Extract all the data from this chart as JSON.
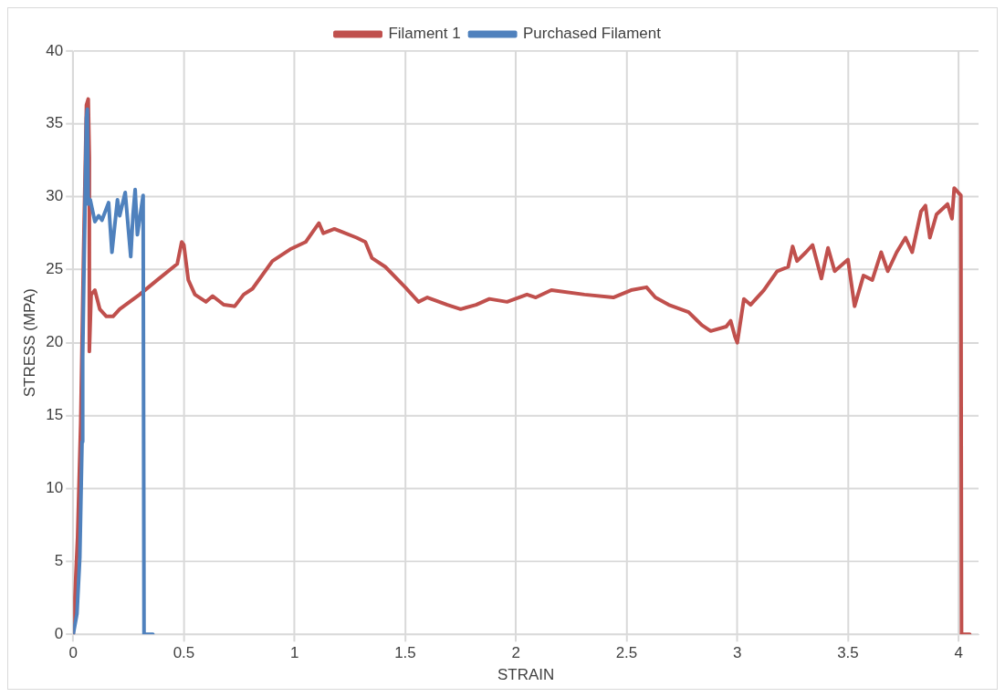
{
  "chart_data": {
    "type": "line",
    "xlabel": "STRAIN",
    "ylabel": "STRESS (MPA)",
    "xlim": [
      0,
      4.09
    ],
    "xticks": [
      0,
      0.5,
      1,
      1.5,
      2,
      2.5,
      3,
      3.5,
      4
    ],
    "ylim": [
      0,
      40
    ],
    "yticks": [
      0,
      5,
      10,
      15,
      20,
      25,
      30,
      35,
      40
    ],
    "grid": true,
    "legend": "top",
    "marker": "none",
    "line_style": "solid",
    "series": [
      {
        "name": "Filament 1",
        "color": "#c0504d",
        "x": [
          0,
          0.02,
          0.034,
          0.047,
          0.06,
          0.068,
          0.073,
          0.073,
          0.081,
          0.098,
          0.12,
          0.15,
          0.18,
          0.21,
          0.3,
          0.38,
          0.47,
          0.49,
          0.5,
          0.52,
          0.55,
          0.6,
          0.63,
          0.68,
          0.73,
          0.77,
          0.81,
          0.9,
          0.98,
          1.05,
          1.11,
          1.13,
          1.18,
          1.28,
          1.32,
          1.35,
          1.41,
          1.5,
          1.56,
          1.6,
          1.69,
          1.75,
          1.82,
          1.88,
          1.96,
          2.05,
          2.09,
          2.16,
          2.31,
          2.44,
          2.52,
          2.59,
          2.63,
          2.69,
          2.78,
          2.84,
          2.88,
          2.95,
          2.97,
          2.99,
          3,
          3.03,
          3.06,
          3.12,
          3.18,
          3.23,
          3.25,
          3.27,
          3.31,
          3.34,
          3.38,
          3.41,
          3.44,
          3.5,
          3.53,
          3.57,
          3.61,
          3.65,
          3.68,
          3.72,
          3.76,
          3.79,
          3.83,
          3.85,
          3.87,
          3.9,
          3.95,
          3.97,
          3.98,
          4.01,
          4.013,
          4.05
        ],
        "values": [
          0,
          6.7,
          14.5,
          26.2,
          36.3,
          36.7,
          32.7,
          19.4,
          23.3,
          23.6,
          22.3,
          21.8,
          21.8,
          22.3,
          23.3,
          24.3,
          25.4,
          26.9,
          26.7,
          24.3,
          23.3,
          22.8,
          23.2,
          22.6,
          22.5,
          23.3,
          23.7,
          25.6,
          26.4,
          26.9,
          28.2,
          27.5,
          27.8,
          27.2,
          26.9,
          25.8,
          25.2,
          23.8,
          22.8,
          23.1,
          22.6,
          22.3,
          22.6,
          23,
          22.8,
          23.3,
          23.1,
          23.6,
          23.3,
          23.1,
          23.6,
          23.8,
          23.1,
          22.6,
          22.1,
          21.2,
          20.8,
          21.1,
          21.5,
          20.4,
          20,
          23,
          22.6,
          23.6,
          24.9,
          25.2,
          26.6,
          25.6,
          26.2,
          26.7,
          24.4,
          26.5,
          24.9,
          25.7,
          22.5,
          24.6,
          24.3,
          26.2,
          24.9,
          26.2,
          27.2,
          26.2,
          29,
          29.4,
          27.2,
          28.8,
          29.5,
          28.5,
          30.6,
          30.1,
          0,
          0
        ]
      },
      {
        "name": "Purchased Filament",
        "color": "#4f81bd",
        "x": [
          0,
          0.017,
          0.03,
          0.04,
          0.043,
          0.05,
          0.06,
          0.064,
          0.068,
          0.077,
          0.098,
          0.115,
          0.13,
          0.16,
          0.175,
          0.2,
          0.21,
          0.235,
          0.26,
          0.27,
          0.28,
          0.29,
          0.316,
          0.32,
          0.36
        ],
        "values": [
          0,
          1.4,
          5.3,
          13.2,
          19,
          26.2,
          35.4,
          36,
          29.5,
          29.8,
          28.3,
          28.7,
          28.4,
          29.6,
          26.2,
          29.8,
          28.7,
          30.3,
          25.9,
          28.7,
          30.5,
          27.4,
          30.1,
          0,
          0
        ]
      }
    ]
  }
}
